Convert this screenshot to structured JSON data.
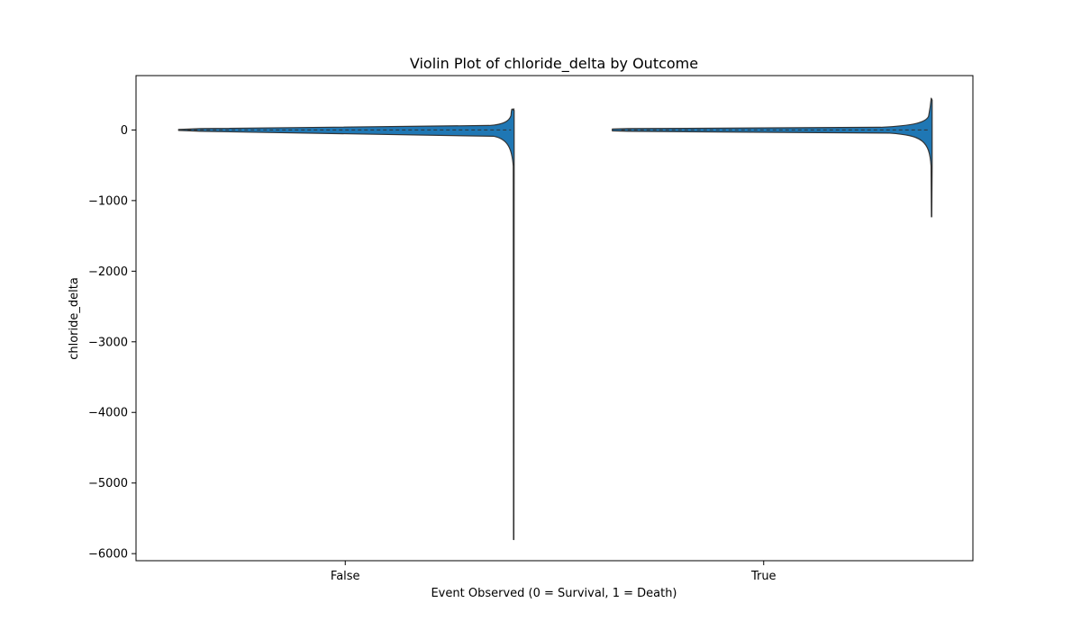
{
  "chart_data": {
    "type": "violin",
    "title": "Violin Plot of chloride_delta by Outcome",
    "xlabel": "Event Observed (0 = Survival, 1 = Death)",
    "ylabel": "chloride_delta",
    "categories": [
      "False",
      "True"
    ],
    "y_ticks": [
      0,
      -1000,
      -2000,
      -3000,
      -4000,
      -5000,
      -6000
    ],
    "y_tick_labels": [
      "0",
      "−1000",
      "−2000",
      "−3000",
      "−4000",
      "−5000",
      "−6000"
    ],
    "ylim": [
      -6100,
      770
    ],
    "orientation": "vertical",
    "grid": false,
    "colors": {
      "fill": "#1f77b4",
      "edge": "#333333"
    },
    "violins": [
      {
        "category": "False",
        "min": -5800,
        "max": 300,
        "q1": -10,
        "median": 0,
        "q3": 10
      },
      {
        "category": "True",
        "min": -1230,
        "max": 450,
        "q1": -8,
        "median": 0,
        "q3": 8
      }
    ]
  }
}
